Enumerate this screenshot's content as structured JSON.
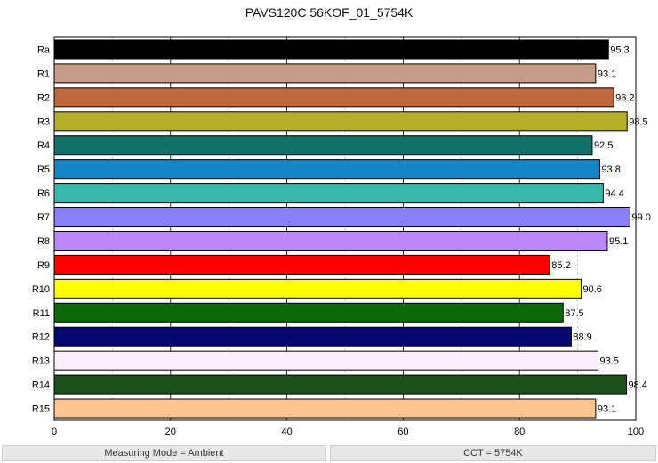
{
  "chart_data": {
    "type": "bar",
    "orientation": "horizontal",
    "title": "PAVS120C 56KOF_01_5754K",
    "xlabel": "",
    "ylabel": "",
    "xlim": [
      0,
      100
    ],
    "x_ticks": [
      0,
      20,
      40,
      60,
      80,
      100
    ],
    "grid": "vertical lines solid at 20s, dashed at 10s",
    "categories": [
      "Ra",
      "R1",
      "R2",
      "R3",
      "R4",
      "R5",
      "R6",
      "R7",
      "R8",
      "R9",
      "R10",
      "R11",
      "R12",
      "R13",
      "R14",
      "R15"
    ],
    "values": [
      95.3,
      93.1,
      96.2,
      98.5,
      92.5,
      93.8,
      94.4,
      99.0,
      95.1,
      85.2,
      90.6,
      87.5,
      88.9,
      93.5,
      98.4,
      93.1
    ],
    "value_labels": [
      "95.3",
      "93.1",
      "96.2",
      "98.5",
      "92.5",
      "93.8",
      "94.4",
      "99.0",
      "95.1",
      "85.2",
      "90.6",
      "87.5",
      "88.9",
      "93.5",
      "98.4",
      "93.1"
    ],
    "colors": [
      "#000000",
      "#c49c89",
      "#c0693f",
      "#b5ae2b",
      "#117068",
      "#1685c6",
      "#36b8ab",
      "#8a7ff9",
      "#bd86f6",
      "#ff0000",
      "#ffff00",
      "#0c6809",
      "#070772",
      "#fdeefd",
      "#1b4f1b",
      "#ffc48f"
    ]
  },
  "status": {
    "left": "Measuring Mode = Ambient",
    "right": "CCT = 5754K"
  }
}
